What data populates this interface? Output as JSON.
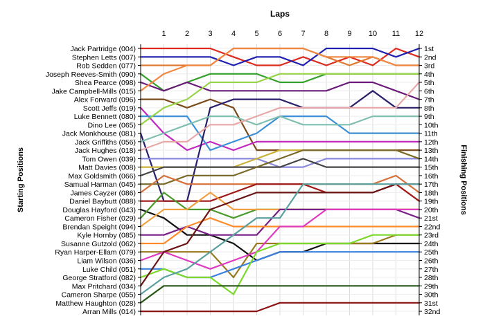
{
  "chart_data": {
    "type": "line",
    "title": "Laps",
    "xlabel": "Laps",
    "ylabel_left": "Starting Positions",
    "ylabel_right": "Finishing Positions",
    "x": [
      0,
      1,
      2,
      3,
      4,
      5,
      6,
      7,
      8,
      9,
      10,
      11,
      12
    ],
    "x_tick_labels": [
      "1",
      "2",
      "3",
      "4",
      "5",
      "6",
      "7",
      "8",
      "9",
      "10",
      "11",
      "12"
    ],
    "ylim": [
      1,
      32
    ],
    "y_inverted": true,
    "grid": true,
    "finish_labels": [
      "1st",
      "2nd",
      "3rd",
      "4th",
      "5th",
      "6th",
      "7th",
      "8th",
      "9th",
      "10th",
      "11th",
      "12th",
      "13th",
      "14th",
      "15th",
      "16th",
      "17th",
      "18th",
      "19th",
      "20th",
      "21st",
      "22nd",
      "23rd",
      "24th",
      "25th",
      "26th",
      "27th",
      "28th",
      "29th",
      "30th",
      "31st",
      "32nd"
    ],
    "series": [
      {
        "name": "Jack Partridge (004)",
        "color": "#dd2a1f",
        "values": [
          1,
          1,
          1,
          1,
          2,
          3,
          3,
          2,
          3,
          2,
          3,
          1,
          2
        ]
      },
      {
        "name": "Stephen Letts (007)",
        "color": "#1f1fb0",
        "values": [
          2,
          2,
          2,
          2,
          3,
          2,
          2,
          3,
          1,
          1,
          1,
          2,
          1
        ]
      },
      {
        "name": "Rob Sedden (077)",
        "color": "#e07a30",
        "values": [
          3,
          3,
          3,
          3,
          1,
          1,
          1,
          1,
          2,
          3,
          2,
          3,
          3
        ]
      },
      {
        "name": "Joseph Reeves-Smith (090)",
        "color": "#33a02c",
        "values": [
          4,
          6,
          5,
          4,
          4,
          4,
          5,
          5,
          4,
          4,
          4,
          4,
          4
        ]
      },
      {
        "name": "Shea Pearce (098)",
        "color": "#6a1b7a",
        "values": [
          5,
          6,
          5,
          6,
          6,
          6,
          6,
          6,
          6,
          5,
          5,
          6,
          7
        ]
      },
      {
        "name": "Jake Campbell-Mills (015)",
        "color": "#ee8844",
        "values": [
          6,
          4,
          3,
          3,
          1,
          1,
          1,
          1,
          2,
          2,
          2,
          3,
          3
        ]
      },
      {
        "name": "Alex Forward (096)",
        "color": "#7b4a1a",
        "values": [
          7,
          7,
          8,
          7,
          8,
          13,
          13,
          13,
          13,
          13,
          13,
          13,
          13
        ]
      },
      {
        "name": "Scott Jeffs (019)",
        "color": "#c028c0",
        "values": [
          8,
          11,
          13,
          12,
          13,
          12,
          12,
          12,
          12,
          12,
          12,
          12,
          12
        ]
      },
      {
        "name": "Luke Bennett (080)",
        "color": "#3b8fd6",
        "values": [
          9,
          9,
          9,
          13,
          12,
          11,
          9,
          9,
          9,
          11,
          11,
          11,
          11
        ]
      },
      {
        "name": "Dino Lee (065)",
        "color": "#98d34a",
        "values": [
          10,
          8,
          7,
          5,
          5,
          5,
          4,
          4,
          4,
          4,
          4,
          4,
          4
        ]
      },
      {
        "name": "Jack Monkhouse (081)",
        "color": "#2a1f6a",
        "values": [
          11,
          19,
          19,
          8,
          7,
          7,
          7,
          8,
          8,
          8,
          6,
          8,
          8
        ]
      },
      {
        "name": "Jack Griffiths (056)",
        "color": "#7fbfb0",
        "values": [
          12,
          11,
          10,
          9,
          9,
          10,
          9,
          10,
          10,
          10,
          9,
          9,
          9
        ]
      },
      {
        "name": "Jack Hughes (018)",
        "color": "#e8a8a8",
        "values": [
          13,
          12,
          12,
          10,
          10,
          9,
          8,
          8,
          8,
          8,
          8,
          8,
          5
        ]
      },
      {
        "name": "Tom Owen (039)",
        "color": "#8888dd",
        "values": [
          14,
          14,
          14,
          14,
          14,
          14,
          15,
          15,
          14,
          14,
          14,
          14,
          14
        ]
      },
      {
        "name": "Matt Davies (008)",
        "color": "#c9b23a",
        "values": [
          15,
          15,
          15,
          15,
          15,
          14,
          13,
          13,
          13,
          13,
          13,
          13,
          14
        ]
      },
      {
        "name": "Max Goldsmith (066)",
        "color": "#444444",
        "values": [
          16,
          15,
          15,
          15,
          15,
          15,
          15,
          14,
          15,
          15,
          15,
          15,
          15
        ]
      },
      {
        "name": "Samual Harman (045)",
        "color": "#7a6a2a",
        "values": [
          17,
          17,
          16,
          16,
          16,
          15,
          14,
          13,
          13,
          13,
          13,
          13,
          14
        ]
      },
      {
        "name": "James Cayzer (086)",
        "color": "#d6703a",
        "values": [
          18,
          16,
          17,
          17,
          17,
          17,
          17,
          17,
          17,
          17,
          17,
          16,
          18
        ]
      },
      {
        "name": "Daniel Baybutt (088)",
        "color": "#a01818",
        "values": [
          19,
          19,
          19,
          19,
          18,
          17,
          17,
          17,
          18,
          18,
          18,
          17,
          19
        ]
      },
      {
        "name": "Douglas Hayford (043)",
        "color": "#111111",
        "values": [
          20,
          21,
          23,
          23,
          24,
          26,
          25,
          25,
          24,
          24,
          24,
          24,
          24
        ]
      },
      {
        "name": "Cameron Fisher (029)",
        "color": "#4a9a2a",
        "values": [
          21,
          18,
          20,
          20,
          21,
          20,
          20,
          20,
          20,
          20,
          20,
          20,
          20
        ]
      },
      {
        "name": "Brendan Speight (094)",
        "color": "#f0a040",
        "values": [
          22,
          20,
          20,
          18,
          20,
          20,
          20,
          20,
          20,
          20,
          20,
          20,
          20
        ]
      },
      {
        "name": "Kyle Hornby (085)",
        "color": "#7a1f8a",
        "values": [
          23,
          23,
          22,
          23,
          23,
          23,
          20,
          20,
          20,
          20,
          20,
          20,
          21
        ]
      },
      {
        "name": "Susanne Gutzold (062)",
        "color": "#ff8a2a",
        "values": [
          24,
          24,
          22,
          21,
          22,
          22,
          22,
          22,
          22,
          22,
          22,
          22,
          22
        ]
      },
      {
        "name": "Ryan Harper-Ellam (079)",
        "color": "#9a7a1f",
        "values": [
          25,
          25,
          25,
          25,
          28,
          24,
          24,
          24,
          24,
          24,
          24,
          23,
          23
        ]
      },
      {
        "name": "Liam Wilson (036)",
        "color": "#e03ac0",
        "values": [
          26,
          25,
          26,
          27,
          26,
          25,
          22,
          22,
          20,
          20,
          20,
          20,
          20
        ]
      },
      {
        "name": "Luke Child (051)",
        "color": "#3a80e0",
        "values": [
          27,
          27,
          28,
          28,
          27,
          26,
          25,
          25,
          25,
          25,
          25,
          25,
          25
        ]
      },
      {
        "name": "George Stratford (082)",
        "color": "#7ad92a",
        "values": [
          28,
          27,
          28,
          28,
          30,
          25,
          24,
          24,
          24,
          24,
          23,
          23,
          23
        ]
      },
      {
        "name": "Max Pritchard (034)",
        "color": "#6a1414",
        "values": [
          29,
          25,
          24,
          20,
          19,
          18,
          18,
          18,
          18,
          18,
          18,
          17,
          17
        ]
      },
      {
        "name": "Cameron Sharpe (055)",
        "color": "#5aa0a0",
        "values": [
          30,
          28,
          27,
          25,
          23,
          21,
          21,
          17,
          17,
          17,
          17,
          17,
          17
        ]
      },
      {
        "name": "Matthew Haughton (028)",
        "color": "#2a5a1a",
        "values": [
          31,
          29,
          29,
          29,
          29,
          29,
          29,
          29,
          29,
          29,
          29,
          29,
          29
        ]
      },
      {
        "name": "Arran Mills (014)",
        "color": "#8a1212",
        "values": [
          32,
          32,
          32,
          32,
          32,
          32,
          31,
          31,
          31,
          31,
          31,
          31,
          31
        ]
      }
    ]
  }
}
